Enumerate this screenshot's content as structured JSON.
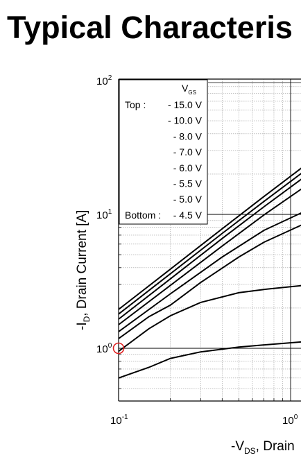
{
  "page": {
    "title": "Typical Characteris"
  },
  "chart_data": {
    "type": "line",
    "xscale": "log",
    "yscale": "log",
    "xlim": [
      0.1,
      1.0
    ],
    "ylim": [
      0.4,
      100
    ],
    "grid": true,
    "xlabel": {
      "main": "-V",
      "sub": "DS",
      "rest": ", Drain"
    },
    "ylabel": {
      "main": "-I",
      "sub": "D",
      "rest": ", Drain Current [A]"
    },
    "xticks": [
      {
        "value": 0.1,
        "base": "10",
        "exp": "-1"
      },
      {
        "value": 1.0,
        "base": "10",
        "exp": "0"
      }
    ],
    "yticks": [
      {
        "value": 1,
        "base": "10",
        "exp": "0"
      },
      {
        "value": 10,
        "base": "10",
        "exp": "1"
      },
      {
        "value": 100,
        "base": "10",
        "exp": "2"
      }
    ],
    "legend": {
      "placement": "top-left",
      "header": {
        "main": "V",
        "sub": "GS"
      },
      "top_label": "Top :",
      "bottom_label": "Bottom :",
      "entries": [
        "- 15.0 V",
        "- 10.0 V",
        "- 8.0 V",
        "- 7.0 V",
        "- 6.0 V",
        "- 5.5 V",
        "- 5.0 V",
        "- 4.5 V"
      ]
    },
    "series": [
      {
        "x": [
          0.1,
          0.2,
          0.4,
          0.7,
          1.2
        ],
        "y": [
          1.95,
          3.9,
          7.8,
          13.6,
          23
        ]
      },
      {
        "x": [
          0.1,
          0.2,
          0.4,
          0.7,
          1.2
        ],
        "y": [
          1.8,
          3.6,
          7.2,
          12.5,
          21
        ]
      },
      {
        "x": [
          0.1,
          0.2,
          0.4,
          0.7,
          1.2
        ],
        "y": [
          1.65,
          3.3,
          6.6,
          11.4,
          19
        ]
      },
      {
        "x": [
          0.1,
          0.2,
          0.4,
          0.7,
          1.2
        ],
        "y": [
          1.5,
          2.95,
          5.8,
          9.9,
          16
        ]
      },
      {
        "x": [
          0.1,
          0.2,
          0.4,
          0.7,
          1.2
        ],
        "y": [
          1.33,
          2.55,
          4.8,
          7.6,
          10.5
        ]
      },
      {
        "x": [
          0.1,
          0.15,
          0.2,
          0.3,
          0.5,
          0.7,
          1.2
        ],
        "y": [
          1.18,
          1.72,
          2.1,
          3.1,
          4.8,
          6.2,
          8.5
        ]
      },
      {
        "x": [
          0.1,
          0.15,
          0.2,
          0.3,
          0.5,
          0.7,
          1.2
        ],
        "y": [
          0.95,
          1.4,
          1.75,
          2.2,
          2.6,
          2.75,
          2.95
        ]
      },
      {
        "x": [
          0.1,
          0.15,
          0.2,
          0.3,
          0.5,
          0.7,
          1.2
        ],
        "y": [
          0.6,
          0.72,
          0.84,
          0.94,
          1.02,
          1.06,
          1.12
        ]
      }
    ],
    "annotations": [
      {
        "type": "circle",
        "x": 0.1,
        "y": 1,
        "color": "#e02020"
      }
    ]
  }
}
